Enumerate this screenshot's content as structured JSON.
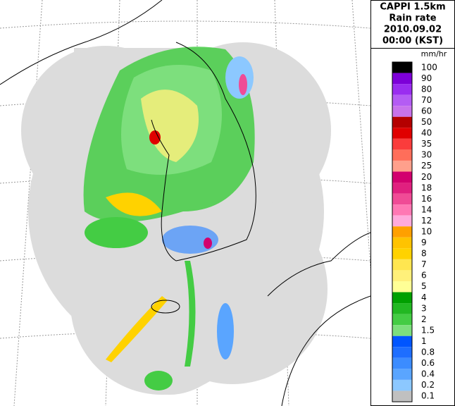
{
  "header": {
    "lines": [
      "CAPPI 1.5km",
      "Rain rate",
      "2010.09.02",
      "00:00 (KST)"
    ]
  },
  "legend": {
    "unit": "mm/hr",
    "levels": [
      {
        "label": "100",
        "color": "#000000"
      },
      {
        "label": "90",
        "color": "#7d00d8"
      },
      {
        "label": "80",
        "color": "#9a2df0"
      },
      {
        "label": "70",
        "color": "#b45cf4"
      },
      {
        "label": "60",
        "color": "#c873ec"
      },
      {
        "label": "50",
        "color": "#b40000"
      },
      {
        "label": "40",
        "color": "#e00000"
      },
      {
        "label": "35",
        "color": "#fa3c3c"
      },
      {
        "label": "30",
        "color": "#ff6e5a"
      },
      {
        "label": "25",
        "color": "#ffa08c"
      },
      {
        "label": "20",
        "color": "#d2006e"
      },
      {
        "label": "18",
        "color": "#e0207f"
      },
      {
        "label": "16",
        "color": "#f04b96"
      },
      {
        "label": "14",
        "color": "#ff78b4"
      },
      {
        "label": "12",
        "color": "#ffaadc"
      },
      {
        "label": "10",
        "color": "#ffa000"
      },
      {
        "label": "9",
        "color": "#ffc300"
      },
      {
        "label": "8",
        "color": "#ffd200"
      },
      {
        "label": "7",
        "color": "#ffe650"
      },
      {
        "label": "6",
        "color": "#fff07a"
      },
      {
        "label": "5",
        "color": "#ffff96"
      },
      {
        "label": "4",
        "color": "#00a000"
      },
      {
        "label": "3",
        "color": "#22b822"
      },
      {
        "label": "2",
        "color": "#44cc44"
      },
      {
        "label": "1.5",
        "color": "#7ddf7d"
      },
      {
        "label": "1",
        "color": "#0055ff"
      },
      {
        "label": "0.8",
        "color": "#1e6eff"
      },
      {
        "label": "0.6",
        "color": "#3c8cff"
      },
      {
        "label": "0.4",
        "color": "#5aa5ff"
      },
      {
        "label": "0.2",
        "color": "#8cc8ff"
      },
      {
        "label": "0.1",
        "color": "#c0c0c0"
      }
    ]
  }
}
